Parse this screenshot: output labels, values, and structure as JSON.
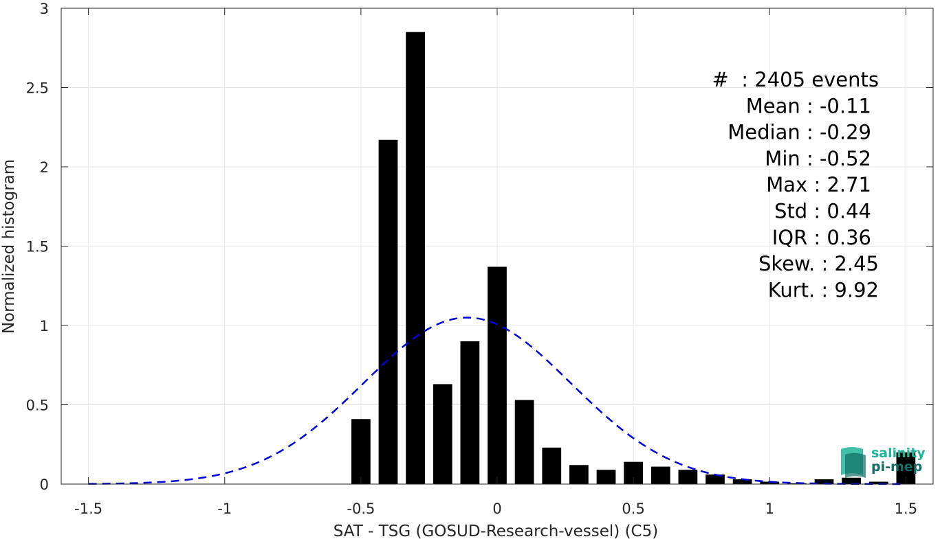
{
  "chart_data": {
    "type": "bar",
    "xlabel": "SAT - TSG (GOSUD-Research-vessel) (C5)",
    "ylabel": "Normalized histogram",
    "xlim": [
      -1.6,
      1.6
    ],
    "ylim": [
      0,
      3
    ],
    "x_ticks": [
      -1.5,
      -1,
      -0.5,
      0,
      0.5,
      1,
      1.5
    ],
    "x_tick_labels": [
      "-1.5",
      "-1",
      "-0.5",
      "0",
      "0.5",
      "1",
      "1.5"
    ],
    "y_ticks": [
      0,
      0.5,
      1,
      1.5,
      2,
      2.5,
      3
    ],
    "y_tick_labels": [
      "0",
      "0.5",
      "1",
      "1.5",
      "2",
      "2.5",
      "3"
    ],
    "grid": true,
    "bar_width": 0.07,
    "bar_color": "#000000",
    "bars": [
      {
        "x": -0.5,
        "y": 0.41
      },
      {
        "x": -0.4,
        "y": 2.17
      },
      {
        "x": -0.3,
        "y": 2.85
      },
      {
        "x": -0.2,
        "y": 0.63
      },
      {
        "x": -0.1,
        "y": 0.9
      },
      {
        "x": 0.0,
        "y": 1.37
      },
      {
        "x": 0.1,
        "y": 0.53
      },
      {
        "x": 0.2,
        "y": 0.23
      },
      {
        "x": 0.3,
        "y": 0.12
      },
      {
        "x": 0.4,
        "y": 0.09
      },
      {
        "x": 0.5,
        "y": 0.14
      },
      {
        "x": 0.6,
        "y": 0.11
      },
      {
        "x": 0.7,
        "y": 0.09
      },
      {
        "x": 0.8,
        "y": 0.06
      },
      {
        "x": 0.9,
        "y": 0.03
      },
      {
        "x": 1.0,
        "y": 0.015
      },
      {
        "x": 1.1,
        "y": 0.005
      },
      {
        "x": 1.2,
        "y": 0.03
      },
      {
        "x": 1.3,
        "y": 0.04
      },
      {
        "x": 1.4,
        "y": 0.015
      },
      {
        "x": 1.5,
        "y": 0.2
      }
    ],
    "fit_curve": {
      "style": "dashed",
      "color": "#0000dd",
      "mean": -0.11,
      "std": 0.38,
      "x_range": [
        -1.5,
        1.5
      ]
    },
    "stats": [
      "#  : 2405 events",
      "Mean : -0.11",
      "Median : -0.29",
      "Min : -0.52",
      "Max : 2.71",
      "Std : 0.44",
      "IQR : 0.36",
      "Skew. : 2.45",
      "Kurt. : 9.92"
    ]
  },
  "logo": {
    "line1": "salinity",
    "line2": "pi-mep",
    "colors": {
      "primary": "#1fb59a",
      "dark": "#0e6e64"
    }
  }
}
